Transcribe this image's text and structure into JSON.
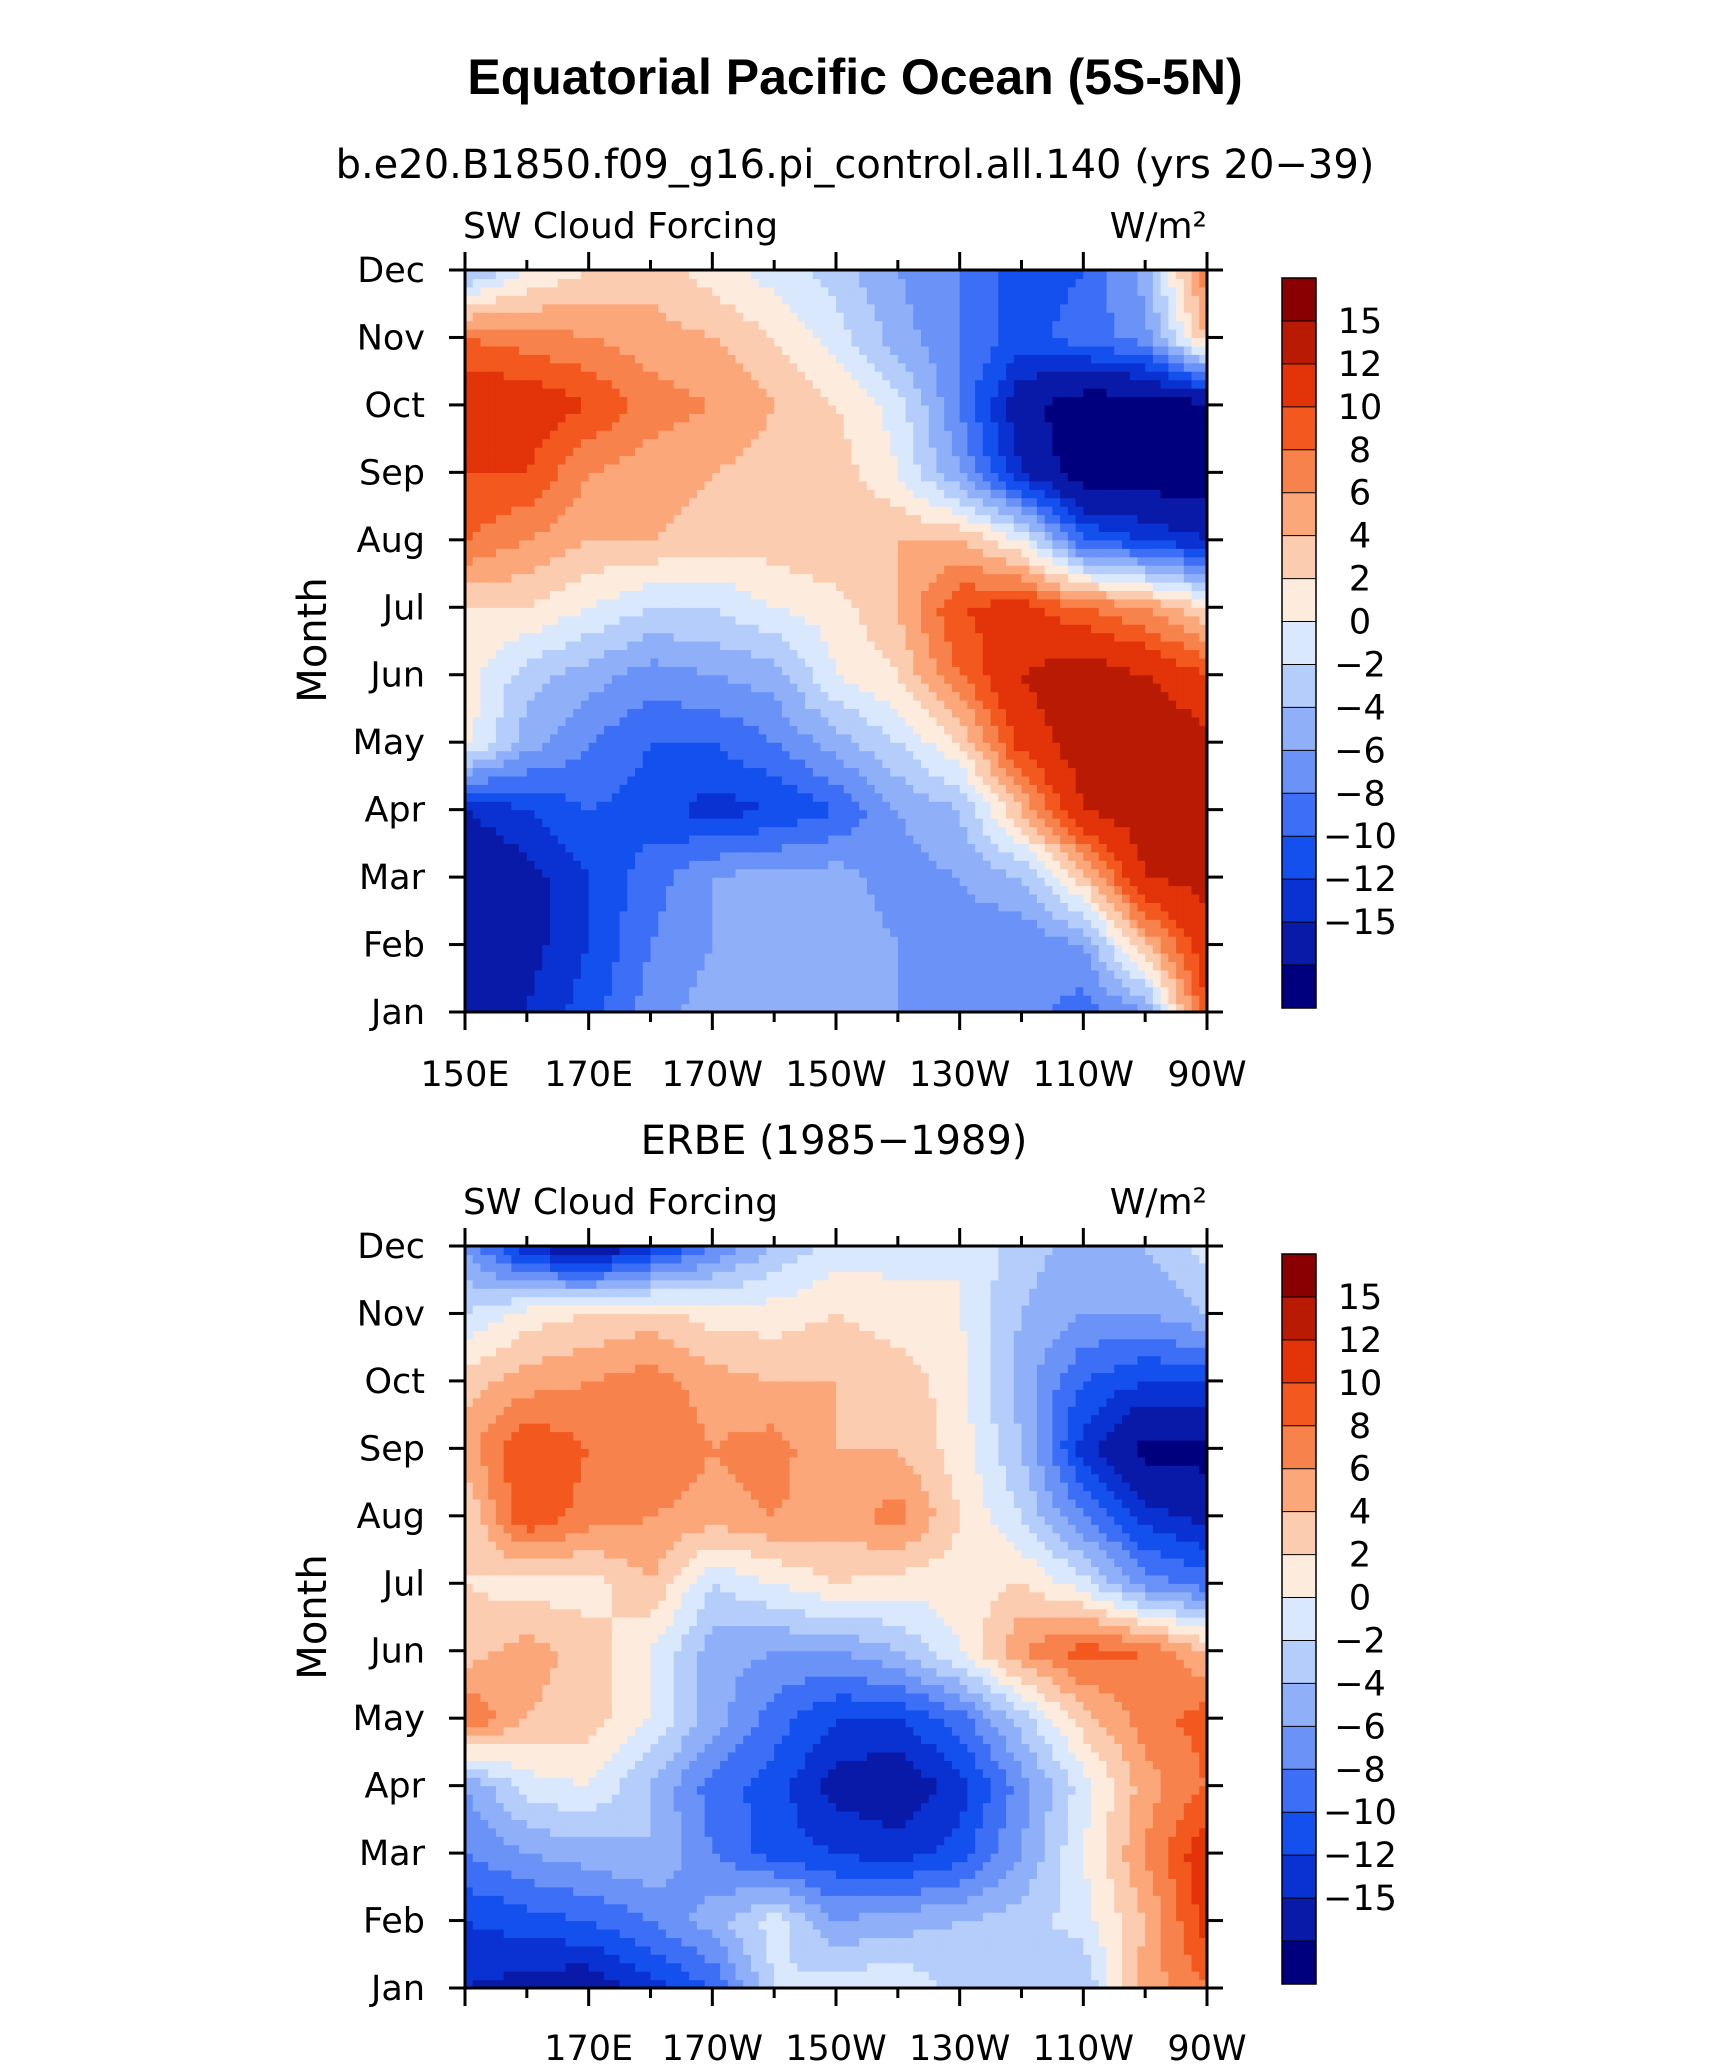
{
  "title": "Equatorial Pacific Ocean (5S-5N)",
  "palette": [
    "#00007f",
    "#0a1aa8",
    "#0a32d2",
    "#1450ee",
    "#3c6ef6",
    "#6a92f7",
    "#8fb0f8",
    "#b5cdfb",
    "#d9e8fd",
    "#fdecdd",
    "#fcccb0",
    "#fba77a",
    "#f8824c",
    "#f3581f",
    "#e23309",
    "#b91a04",
    "#8a0000"
  ],
  "chart_data": [
    {
      "type": "heatmap",
      "subtitle": "b.e20.B1850.f09_g16.pi_control.all.140 (yrs 20−39)",
      "left_label": "SW Cloud Forcing",
      "right_label": "W/m²",
      "ylabel": "Month",
      "xlabel": "",
      "x_tick_labels": [
        "150E",
        "170E",
        "170W",
        "150W",
        "130W",
        "110W",
        "90W"
      ],
      "y_tick_labels": [
        "Jan",
        "Feb",
        "Mar",
        "Apr",
        "May",
        "Jun",
        "Jul",
        "Aug",
        "Sep",
        "Oct",
        "Nov",
        "Dec"
      ],
      "x_range_deg_east": [
        150,
        270
      ],
      "colorbar_levels": [
        "15",
        "12",
        "10",
        "8",
        "6",
        "4",
        "2",
        "0",
        "−2",
        "−4",
        "−6",
        "−8",
        "−10",
        "−12",
        "−15"
      ],
      "x_grid_deg_east": [
        150,
        160,
        170,
        180,
        190,
        200,
        210,
        220,
        230,
        240,
        250,
        260,
        270
      ],
      "z": [
        [
          -13,
          -12,
          -9,
          -5,
          -3,
          -2,
          -3,
          -4,
          -5,
          -5,
          -7,
          -4,
          12
        ],
        [
          -14,
          -13,
          -10,
          -6,
          -4,
          -2,
          -3,
          -4,
          -5,
          -6,
          -4,
          6,
          14
        ],
        [
          -15,
          -13,
          -10,
          -7,
          -4,
          -3,
          -3,
          -5,
          -4,
          -2,
          5,
          15,
          16
        ],
        [
          -12,
          -10,
          -8,
          -9,
          -11,
          -10,
          -8,
          -4,
          -2,
          6,
          15,
          17,
          17
        ],
        [
          3,
          -3,
          -6,
          -8,
          -8,
          -6,
          -3,
          0,
          4,
          13,
          17,
          18,
          16
        ],
        [
          3,
          -1,
          -3,
          -5,
          -4,
          -3,
          2,
          4,
          10,
          15,
          17,
          15,
          12
        ],
        [
          4,
          4,
          2,
          0,
          0,
          2,
          3,
          6,
          12,
          13,
          10,
          8,
          4
        ],
        [
          10,
          8,
          6,
          6,
          5,
          5,
          6,
          6,
          6,
          2,
          -8,
          -10,
          -12
        ],
        [
          12,
          12,
          8,
          7,
          6,
          5,
          5,
          2,
          -4,
          -12,
          -17,
          -17,
          -17
        ],
        [
          14,
          14,
          12,
          9,
          8,
          6,
          4,
          1,
          -6,
          -14,
          -17,
          -17,
          -16
        ],
        [
          10,
          9,
          8,
          7,
          6,
          4,
          1,
          -3,
          -6,
          -9,
          -7,
          -5,
          6
        ],
        [
          -3,
          2,
          4,
          5,
          3,
          1,
          -1,
          -4,
          -6,
          -9,
          -8,
          -3,
          10
        ]
      ]
    },
    {
      "type": "heatmap",
      "subtitle": "ERBE (1985−1989)",
      "left_label": "SW Cloud Forcing",
      "right_label": "W/m²",
      "ylabel": "Month",
      "xlabel": "",
      "x_tick_labels": [
        "170E",
        "170W",
        "150W",
        "130W",
        "110W",
        "90W"
      ],
      "y_tick_labels": [
        "Jan",
        "Feb",
        "Mar",
        "Apr",
        "May",
        "Jun",
        "Jul",
        "Aug",
        "Sep",
        "Oct",
        "Nov",
        "Dec"
      ],
      "x_range_deg_east": [
        150,
        270
      ],
      "colorbar_levels": [
        "15",
        "12",
        "10",
        "8",
        "6",
        "4",
        "2",
        "0",
        "−2",
        "−4",
        "−6",
        "−8",
        "−10",
        "−12",
        "−15"
      ],
      "x_grid_deg_east": [
        150,
        160,
        170,
        180,
        190,
        200,
        210,
        220,
        230,
        240,
        250,
        260,
        270
      ],
      "z": [
        [
          -12,
          -13,
          -14,
          -11,
          -8,
          0,
          1,
          2,
          -1,
          -1,
          -2,
          7,
          10
        ],
        [
          -10,
          -9,
          -8,
          -6,
          -3,
          1,
          -4,
          -3,
          -2,
          -1,
          1,
          6,
          13
        ],
        [
          -6,
          -4,
          -3,
          -2,
          -6,
          -9,
          -10,
          -11,
          -9,
          -4,
          2,
          8,
          14
        ],
        [
          -4,
          1,
          2,
          -2,
          -7,
          -9,
          -13,
          -14,
          -11,
          -5,
          1,
          7,
          10
        ],
        [
          10,
          6,
          5,
          2,
          -3,
          -7,
          -10,
          -10,
          -7,
          -1,
          5,
          9,
          11
        ],
        [
          5,
          7,
          5,
          2,
          -3,
          -4,
          -4,
          -2,
          2,
          8,
          11,
          10,
          6
        ],
        [
          4,
          3,
          3,
          6,
          0,
          2,
          4,
          3,
          3,
          4,
          1,
          -5,
          -7
        ],
        [
          4,
          12,
          9,
          8,
          7,
          8,
          7,
          9,
          4,
          0,
          -6,
          -11,
          -13
        ],
        [
          7,
          12,
          10,
          10,
          8,
          9,
          6,
          6,
          3,
          -2,
          -11,
          -16,
          -16
        ],
        [
          5,
          7,
          8,
          9,
          7,
          6,
          6,
          5,
          3,
          -3,
          -8,
          -10,
          -10
        ],
        [
          0,
          3,
          4,
          5,
          3,
          3,
          4,
          3,
          2,
          -2,
          -4,
          -4,
          -2
        ],
        [
          -4,
          -12,
          -15,
          -11,
          -6,
          -2,
          1,
          1,
          2,
          -1,
          -3,
          -2,
          1
        ]
      ]
    }
  ]
}
